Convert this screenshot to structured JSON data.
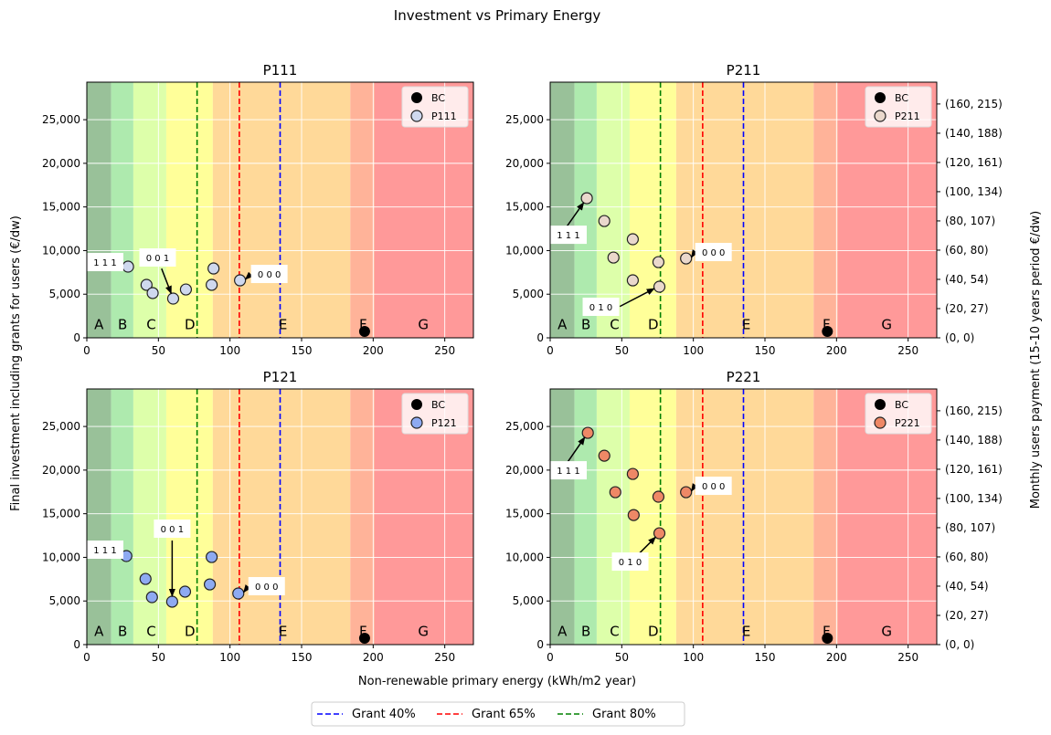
{
  "figure_title": "Investment vs Primary Energy",
  "xlabel": "Non-renewable primary energy (kWh/m2 year)",
  "ylabel": "Final investment including grants for users (€/dw)",
  "ylabel_right": "Monthly users payment (15-10 years period €/dw)",
  "legend": [
    {
      "label": "Grant 40%",
      "color": "#0000ff",
      "x": 135
    },
    {
      "label": "Grant 65%",
      "color": "#ff0000",
      "x": 106.5
    },
    {
      "label": "Grant 80%",
      "color": "#008000",
      "x": 77
    }
  ],
  "bands": [
    {
      "label": "A",
      "from": 0,
      "to": 17,
      "color": "#99c199",
      "label_x": 8.5
    },
    {
      "label": "B",
      "from": 17,
      "to": 32.5,
      "color": "#aeeaae",
      "label_x": 25
    },
    {
      "label": "C",
      "from": 32.5,
      "to": 55.5,
      "color": "#ddffaa",
      "label_x": 45
    },
    {
      "label": "D",
      "from": 55.5,
      "to": 88,
      "color": "#ffff99",
      "label_x": 72
    },
    {
      "label": "E",
      "from": 88,
      "to": 184,
      "color": "#ffd999",
      "label_x": 137
    },
    {
      "label": "F",
      "from": 184,
      "to": 201,
      "color": "#ffb399",
      "label_x": 193
    },
    {
      "label": "G",
      "from": 201,
      "to": 270,
      "color": "#ff9999",
      "label_x": 235
    }
  ],
  "chart_data": [
    {
      "type": "scatter",
      "title": "P111",
      "xlim": [
        0,
        270
      ],
      "ylim": [
        0,
        29300
      ],
      "grid": true,
      "legend_position": "top-right",
      "xticks": [
        "0",
        "50",
        "100",
        "150",
        "200",
        "250"
      ],
      "yticks": [
        "0",
        "5,000",
        "10,000",
        "15,000",
        "20,000",
        "25,000"
      ],
      "right_ticks": [],
      "series": [
        {
          "name": "BC",
          "color": "#000000",
          "x": [
            194
          ],
          "y": [
            730
          ]
        },
        {
          "name": "P111",
          "color": "#cfd8ee",
          "x": [
            28.8,
            41.7,
            46,
            60.3,
            69.2,
            88.5,
            87.2,
            107
          ],
          "y": [
            8160,
            6070,
            5130,
            4500,
            5540,
            7950,
            6070,
            6590
          ]
        }
      ],
      "annotations": [
        {
          "text": "1 1 1",
          "point": 0
        },
        {
          "text": "0 0 1",
          "point": 3
        },
        {
          "text": "0 0 0",
          "point": 7
        }
      ]
    },
    {
      "type": "scatter",
      "title": "P211",
      "xlim": [
        0,
        270
      ],
      "ylim": [
        0,
        29300
      ],
      "grid": true,
      "legend_position": "top-right",
      "xticks": [
        "0",
        "50",
        "100",
        "150",
        "200",
        "250"
      ],
      "yticks": [
        "0",
        "5,000",
        "10,000",
        "15,000",
        "20,000",
        "25,000"
      ],
      "right_ticks": [
        "(0, 0)",
        "(20, 27)",
        "(40, 54)",
        "(60, 80)",
        "(80, 107)",
        "(100, 134)",
        "(120, 161)",
        "(140, 188)",
        "(160, 215)"
      ],
      "series": [
        {
          "name": "BC",
          "color": "#000000",
          "x": [
            193.6
          ],
          "y": [
            730
          ]
        },
        {
          "name": "P211",
          "color": "#ead8cc",
          "x": [
            25.6,
            37.8,
            57.7,
            44.2,
            75.6,
            94.9,
            57.7,
            76.3
          ],
          "y": [
            16000,
            13390,
            11300,
            9200,
            8680,
            9100,
            6590,
            5860
          ]
        }
      ],
      "annotations": [
        {
          "text": "1 1 1",
          "point": 0
        },
        {
          "text": "0 1 0",
          "point": 7
        },
        {
          "text": "0 0 0",
          "point": 5
        }
      ]
    },
    {
      "type": "scatter",
      "title": "P121",
      "xlim": [
        0,
        270
      ],
      "ylim": [
        0,
        29300
      ],
      "grid": true,
      "legend_position": "top-right",
      "xticks": [
        "0",
        "50",
        "100",
        "150",
        "200",
        "250"
      ],
      "yticks": [
        "0",
        "5,000",
        "10,000",
        "15,000",
        "20,000",
        "25,000"
      ],
      "right_ticks": [],
      "series": [
        {
          "name": "BC",
          "color": "#000000",
          "x": [
            194
          ],
          "y": [
            730
          ]
        },
        {
          "name": "P121",
          "color": "#8eaaf2",
          "x": [
            27.6,
            41,
            45.5,
            59.6,
            68.6,
            87.2,
            85.9,
            105.8
          ],
          "y": [
            10150,
            7530,
            5440,
            4920,
            6070,
            10040,
            6900,
            5860
          ]
        }
      ],
      "annotations": [
        {
          "text": "1 1 1",
          "point": 0
        },
        {
          "text": "0 0 1",
          "point": 3
        },
        {
          "text": "0 0 0",
          "point": 7
        }
      ]
    },
    {
      "type": "scatter",
      "title": "P221",
      "xlim": [
        0,
        270
      ],
      "ylim": [
        0,
        29300
      ],
      "grid": true,
      "legend_position": "top-right",
      "xticks": [
        "0",
        "50",
        "100",
        "150",
        "200",
        "250"
      ],
      "yticks": [
        "0",
        "5,000",
        "10,000",
        "15,000",
        "20,000",
        "25,000"
      ],
      "right_ticks": [
        "(0, 0)",
        "(20, 27)",
        "(40, 54)",
        "(60, 80)",
        "(80, 107)",
        "(100, 134)",
        "(120, 161)",
        "(140, 188)",
        "(160, 215)"
      ],
      "series": [
        {
          "name": "BC",
          "color": "#000000",
          "x": [
            193.6
          ],
          "y": [
            730
          ]
        },
        {
          "name": "P221",
          "color": "#ee8866",
          "x": [
            26.3,
            37.8,
            57.7,
            45.5,
            75.6,
            94.9,
            58.3,
            76.3
          ],
          "y": [
            24270,
            21650,
            19560,
            17470,
            16950,
            17470,
            14850,
            12760
          ]
        }
      ],
      "annotations": [
        {
          "text": "1 1 1",
          "point": 0
        },
        {
          "text": "0 1 0",
          "point": 7
        },
        {
          "text": "0 0 0",
          "point": 5
        }
      ]
    }
  ]
}
